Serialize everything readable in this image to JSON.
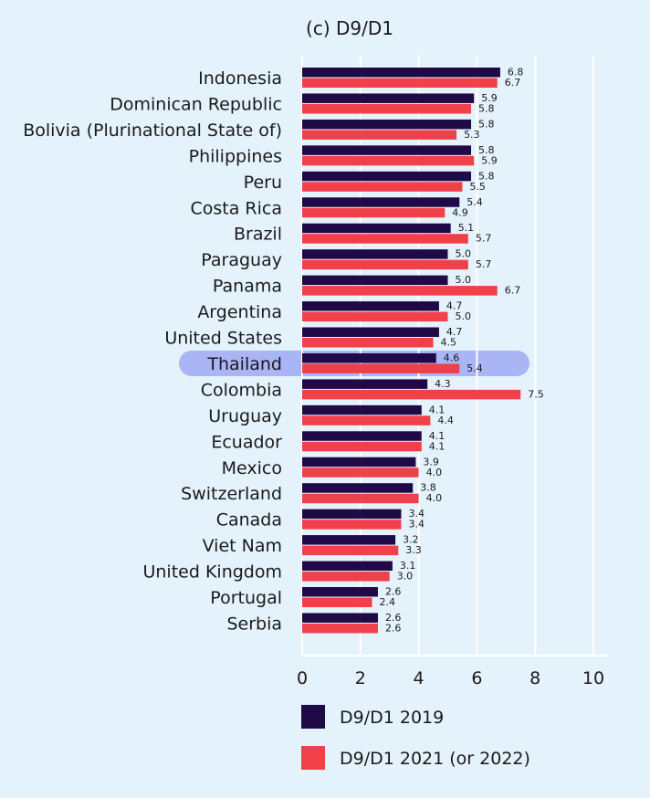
{
  "chart_data": {
    "type": "bar",
    "orientation": "horizontal",
    "title": "(c) D9/D1",
    "categories": [
      "Indonesia",
      "Dominican Republic",
      "Bolivia (Plurinational State of)",
      "Philippines",
      "Peru",
      "Costa Rica",
      "Brazil",
      "Paraguay",
      "Panama",
      "Argentina",
      "United States",
      "Thailand",
      "Colombia",
      "Uruguay",
      "Ecuador",
      "Mexico",
      "Switzerland",
      "Canada",
      "Viet Nam",
      "United Kingdom",
      "Portugal",
      "Serbia"
    ],
    "series": [
      {
        "name": "D9/D1 2019",
        "color": "#1f0a47",
        "values": [
          6.8,
          5.9,
          5.8,
          5.8,
          5.8,
          5.4,
          5.1,
          5.0,
          5.0,
          4.7,
          4.7,
          4.6,
          4.3,
          4.1,
          4.1,
          3.9,
          3.8,
          3.4,
          3.2,
          3.1,
          2.6,
          2.6
        ]
      },
      {
        "name": "D9/D1 2021 (or 2022)",
        "color": "#f0414a",
        "values": [
          6.7,
          5.8,
          5.3,
          5.9,
          5.5,
          4.9,
          5.7,
          5.7,
          6.7,
          5.0,
          4.5,
          5.4,
          7.5,
          4.4,
          4.1,
          4.0,
          4.0,
          3.4,
          3.3,
          3.0,
          2.4,
          2.6
        ]
      }
    ],
    "value_labels": [
      [
        "6.8",
        "5.9",
        "5.8",
        "5.8",
        "5.8",
        "5.4",
        "5.1",
        "5.0",
        "5.0",
        "4.7",
        "4.7",
        "4.6",
        "4.3",
        "4.1",
        "4.1",
        "3.9",
        "3.8",
        "3.4",
        "3.2",
        "3.1",
        "2.6",
        "2.6"
      ],
      [
        "6.7",
        "5.8",
        "5.3",
        "5.9",
        "5.5",
        "4.9",
        "5.7",
        "5.7",
        "6.7",
        "5.0",
        "4.5",
        "5.4",
        "7.5",
        "4.4",
        "4.1",
        "4.0",
        "4.0",
        "3.4",
        "3.3",
        "3.0",
        "2.4",
        "2.6"
      ]
    ],
    "xlim": [
      0,
      10
    ],
    "xticks": [
      0,
      2,
      4,
      6,
      8,
      10
    ],
    "xtick_labels": [
      "0",
      "2",
      "4",
      "6",
      "8",
      "10"
    ],
    "highlight_category": "Thailand",
    "highlight_color": "#a9b5f5",
    "grid": true,
    "grid_color": "#ffffff",
    "legend_position": "bottom"
  }
}
